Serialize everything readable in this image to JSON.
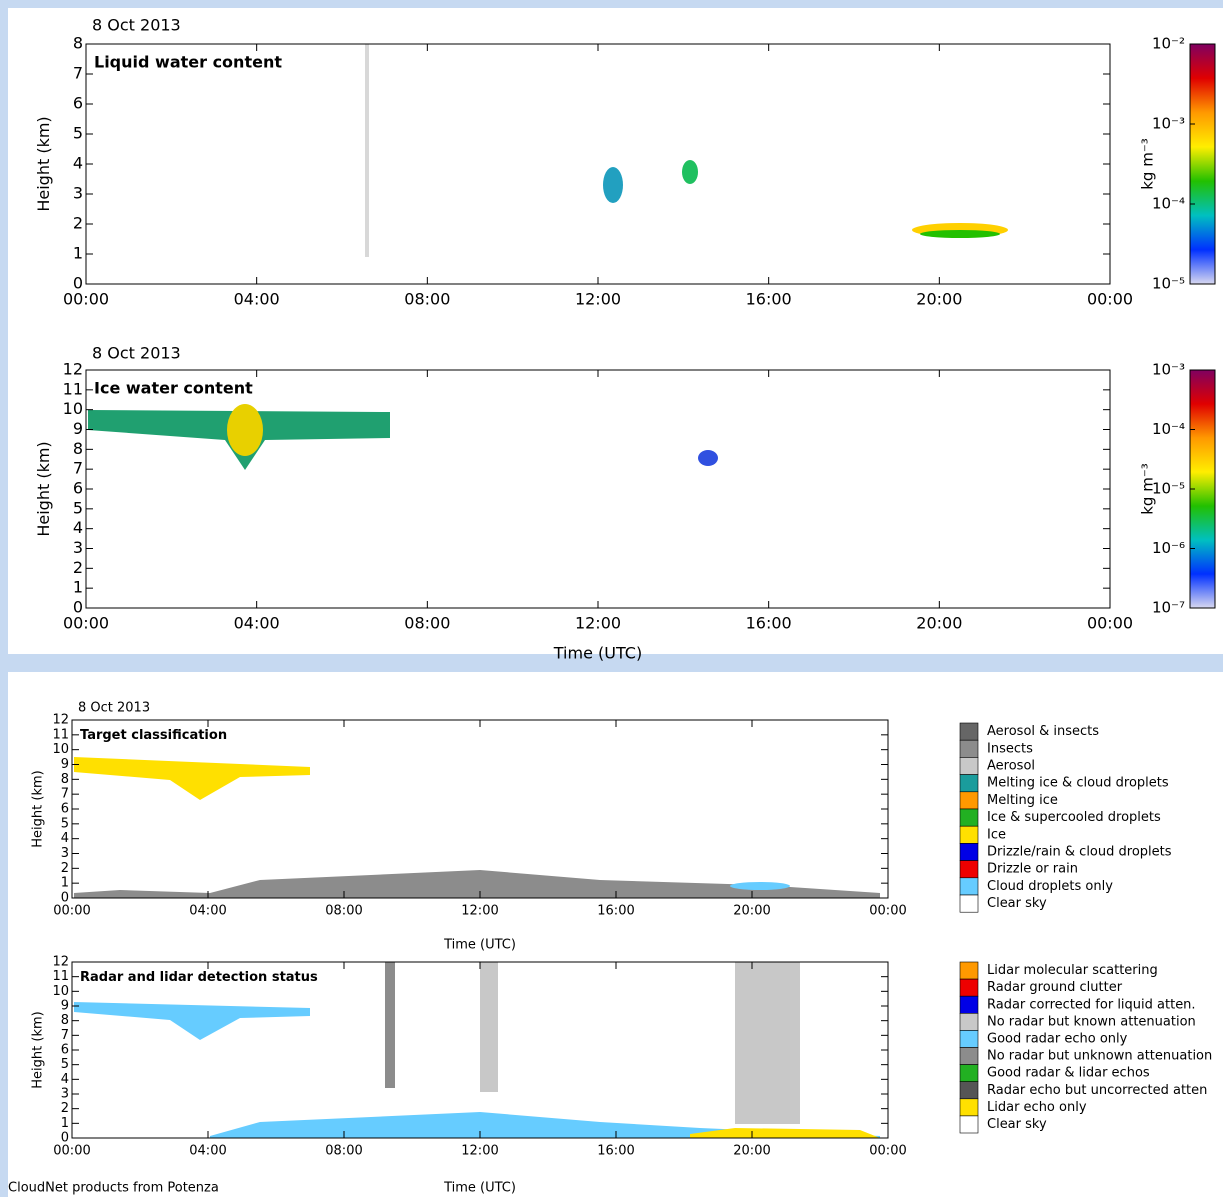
{
  "chart_data": [
    {
      "type": "heatmap",
      "date": "8 Oct 2013",
      "title": "Liquid water content",
      "ylabel": "Height (km)",
      "xlim": [
        0,
        24
      ],
      "xticks": [
        {
          "value": 0,
          "label": "00:00"
        },
        {
          "value": 4,
          "label": "04:00"
        },
        {
          "value": 8,
          "label": "08:00"
        },
        {
          "value": 12,
          "label": "12:00"
        },
        {
          "value": 16,
          "label": "16:00"
        },
        {
          "value": 20,
          "label": "20:00"
        },
        {
          "value": 24,
          "label": "00:00"
        }
      ],
      "ylim": [
        0,
        8
      ],
      "yticks": [
        0,
        1,
        2,
        3,
        4,
        5,
        6,
        7,
        8
      ],
      "colorbar": {
        "label": "kg m⁻³",
        "log": true,
        "lim": [
          1e-05,
          0.01
        ],
        "ticks": [
          {
            "value": 0.01,
            "label": "10⁻²"
          },
          {
            "value": 0.001,
            "label": "10⁻³"
          },
          {
            "value": 0.0001,
            "label": "10⁻⁴"
          },
          {
            "value": 1e-05,
            "label": "10⁻⁵"
          }
        ],
        "colors": [
          "#800060",
          "#e00000",
          "#ff9900",
          "#ffee00",
          "#22c000",
          "#00c0c0",
          "#0030ff",
          "#d8d8f0"
        ]
      }
    },
    {
      "type": "heatmap",
      "date": "8 Oct 2013",
      "title": "Ice water content",
      "ylabel": "Height (km)",
      "xlabel": "Time (UTC)",
      "xlim": [
        0,
        24
      ],
      "xticks": [
        {
          "value": 0,
          "label": "00:00"
        },
        {
          "value": 4,
          "label": "04:00"
        },
        {
          "value": 8,
          "label": "08:00"
        },
        {
          "value": 12,
          "label": "12:00"
        },
        {
          "value": 16,
          "label": "16:00"
        },
        {
          "value": 20,
          "label": "20:00"
        },
        {
          "value": 24,
          "label": "00:00"
        }
      ],
      "ylim": [
        0,
        12
      ],
      "yticks": [
        0,
        1,
        2,
        3,
        4,
        5,
        6,
        7,
        8,
        9,
        10,
        11,
        12
      ],
      "colorbar": {
        "label": "kg m⁻³",
        "log": true,
        "lim": [
          1e-07,
          0.001
        ],
        "ticks": [
          {
            "value": 0.001,
            "label": "10⁻³"
          },
          {
            "value": 0.0001,
            "label": "10⁻⁴"
          },
          {
            "value": 1e-05,
            "label": "10⁻⁵"
          },
          {
            "value": 1e-06,
            "label": "10⁻⁶"
          },
          {
            "value": 1e-07,
            "label": "10⁻⁷"
          }
        ],
        "colors": [
          "#800060",
          "#e00000",
          "#ff9900",
          "#ffee00",
          "#22c000",
          "#00c0c0",
          "#0030ff",
          "#d8d8f0"
        ]
      }
    },
    {
      "type": "category-map",
      "date": "8 Oct 2013",
      "title": "Target classification",
      "ylabel": "Height (km)",
      "xlabel": "Time (UTC)",
      "xlim": [
        0,
        24
      ],
      "xticks": [
        {
          "value": 0,
          "label": "00:00"
        },
        {
          "value": 4,
          "label": "04:00"
        },
        {
          "value": 8,
          "label": "08:00"
        },
        {
          "value": 12,
          "label": "12:00"
        },
        {
          "value": 16,
          "label": "16:00"
        },
        {
          "value": 20,
          "label": "20:00"
        },
        {
          "value": 24,
          "label": "00:00"
        }
      ],
      "ylim": [
        0,
        12
      ],
      "yticks": [
        0,
        1,
        2,
        3,
        4,
        5,
        6,
        7,
        8,
        9,
        10,
        11,
        12
      ],
      "legend": [
        {
          "name": "Aerosol & insects",
          "color": "#666666"
        },
        {
          "name": "Insects",
          "color": "#8c8c8c"
        },
        {
          "name": "Aerosol",
          "color": "#c8c8c8"
        },
        {
          "name": "Melting ice & cloud droplets",
          "color": "#1a9c9c"
        },
        {
          "name": "Melting ice",
          "color": "#ff9900"
        },
        {
          "name": "Ice & supercooled droplets",
          "color": "#22b022"
        },
        {
          "name": "Ice",
          "color": "#ffe000"
        },
        {
          "name": "Drizzle/rain & cloud droplets",
          "color": "#0000e6"
        },
        {
          "name": "Drizzle or rain",
          "color": "#ee0000"
        },
        {
          "name": "Cloud droplets only",
          "color": "#66ccff"
        },
        {
          "name": "Clear sky",
          "color": "#ffffff"
        }
      ]
    },
    {
      "type": "category-map",
      "title": "Radar and lidar detection status",
      "ylabel": "Height (km)",
      "xlabel": "Time (UTC)",
      "xlim": [
        0,
        24
      ],
      "xticks": [
        {
          "value": 0,
          "label": "00:00"
        },
        {
          "value": 4,
          "label": "04:00"
        },
        {
          "value": 8,
          "label": "08:00"
        },
        {
          "value": 12,
          "label": "12:00"
        },
        {
          "value": 16,
          "label": "16:00"
        },
        {
          "value": 20,
          "label": "20:00"
        },
        {
          "value": 24,
          "label": "00:00"
        }
      ],
      "ylim": [
        0,
        12
      ],
      "yticks": [
        0,
        1,
        2,
        3,
        4,
        5,
        6,
        7,
        8,
        9,
        10,
        11,
        12
      ],
      "legend": [
        {
          "name": "Lidar molecular scattering",
          "color": "#ff9900"
        },
        {
          "name": "Radar ground clutter",
          "color": "#ee0000"
        },
        {
          "name": "Radar corrected for liquid atten.",
          "color": "#0000e6"
        },
        {
          "name": "No radar but known attenuation",
          "color": "#c8c8c8"
        },
        {
          "name": "Good radar echo only",
          "color": "#66ccff"
        },
        {
          "name": "No radar but unknown attenuation",
          "color": "#8c8c8c"
        },
        {
          "name": "Good radar & lidar echos",
          "color": "#22b022"
        },
        {
          "name": "Radar echo but uncorrected atten",
          "color": "#555555"
        },
        {
          "name": "Lidar echo only",
          "color": "#ffe000"
        },
        {
          "name": "Clear sky",
          "color": "#ffffff"
        }
      ]
    }
  ],
  "footer": "CloudNet products from Potenza"
}
